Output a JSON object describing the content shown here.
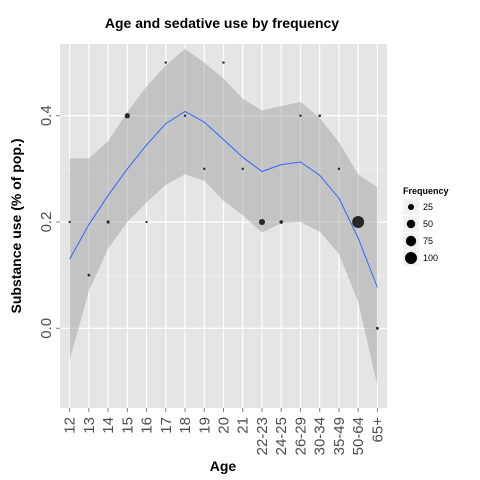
{
  "chart_data": {
    "type": "scatter",
    "title": "Age and sedative use by frequency",
    "xlabel": "Age",
    "ylabel": "Substance use (% of pop.)",
    "categories": [
      "12",
      "13",
      "14",
      "15",
      "16",
      "17",
      "18",
      "19",
      "20",
      "21",
      "22-23",
      "24-25",
      "26-29",
      "30-34",
      "35-49",
      "50-64",
      "65+"
    ],
    "yticks": [
      0.0,
      0.2,
      0.4
    ],
    "ytick_labels": [
      "0.0",
      "0.2",
      "0.4"
    ],
    "ylim": [
      -0.15,
      0.535
    ],
    "grid": true,
    "series": [
      {
        "values": [
          0.2,
          0.1,
          0.2,
          0.4,
          0.2,
          0.5,
          0.4,
          0.3,
          0.5,
          0.3,
          0.2,
          0.2,
          0.4,
          0.4,
          0.3,
          0.2,
          0.0
        ],
        "frequency": [
          2,
          5,
          7,
          19,
          2,
          2,
          3,
          2,
          2,
          3,
          26,
          9,
          2,
          5,
          4,
          100,
          6
        ]
      }
    ],
    "smooth": {
      "fit": [
        0.13,
        0.195,
        0.25,
        0.3,
        0.345,
        0.385,
        0.408,
        0.388,
        0.355,
        0.322,
        0.295,
        0.308,
        0.313,
        0.288,
        0.245,
        0.17,
        0.077
      ],
      "lower": [
        -0.06,
        0.07,
        0.15,
        0.2,
        0.237,
        0.27,
        0.29,
        0.278,
        0.24,
        0.213,
        0.18,
        0.198,
        0.2,
        0.182,
        0.14,
        0.05,
        -0.108
      ],
      "upper": [
        0.32,
        0.32,
        0.352,
        0.407,
        0.455,
        0.495,
        0.526,
        0.5,
        0.47,
        0.432,
        0.41,
        0.418,
        0.426,
        0.396,
        0.35,
        0.29,
        0.265
      ],
      "line_color": "#3366ff",
      "band_color": "#999999"
    },
    "legend": {
      "title": "Frequency",
      "position": "right",
      "entries": [
        {
          "label": "25",
          "value": 25
        },
        {
          "label": "50",
          "value": 50
        },
        {
          "label": "75",
          "value": 75
        },
        {
          "label": "100",
          "value": 100
        }
      ]
    }
  },
  "colors": {
    "panel": "#e5e5e5",
    "grid_major": "#ffffff",
    "grid_minor": "#f2f2f2",
    "point": "#000000"
  }
}
